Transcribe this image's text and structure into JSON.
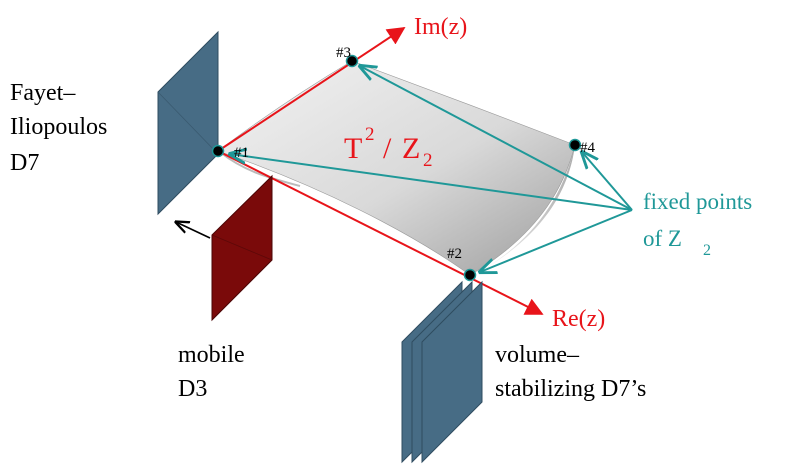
{
  "colors": {
    "brane_blue": "#476c85",
    "brane_blue_edge": "#2f4c60",
    "d3_red": "#7a0a0a",
    "axis_red": "#e8141a",
    "arrow_teal": "#1f9898",
    "point_black": "#000000"
  },
  "axes": {
    "im_label": "Im(z)",
    "re_label": "Re(z)"
  },
  "torus": {
    "label_main": "T",
    "label_sup": "2",
    "label_slash": "/",
    "label_z": "Z",
    "label_sub": "2"
  },
  "points": [
    "#1",
    "#2",
    "#3",
    "#4"
  ],
  "fayet": {
    "line1": "Fayet–",
    "line2": "Iliopoulos",
    "line3": "D7"
  },
  "mobile": {
    "line1": "mobile",
    "line2": "D3"
  },
  "volume": {
    "line1": "volume–",
    "line2": "stabilizing D7’s"
  },
  "fixed_points": {
    "line1": "fixed points",
    "line2_prefix": "of Z",
    "line2_sub": "2"
  }
}
